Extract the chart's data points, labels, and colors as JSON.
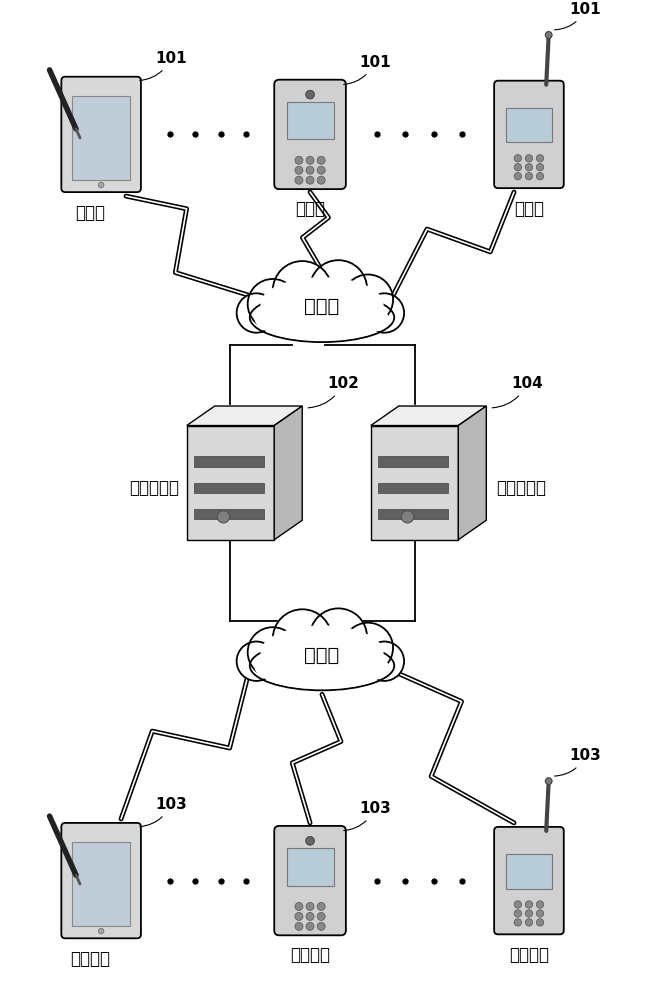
{
  "bg_color": "#ffffff",
  "line_color": "#000000",
  "text_color": "#000000",
  "label_101": "101",
  "label_102": "102",
  "label_103": "103",
  "label_104": "104",
  "label_internet": "互联网",
  "label_file_server": "文件服务器",
  "label_signal_server": "信令服务器",
  "label_source": "源终端",
  "label_target": "目标终端",
  "fig_width": 6.45,
  "fig_height": 10.0
}
